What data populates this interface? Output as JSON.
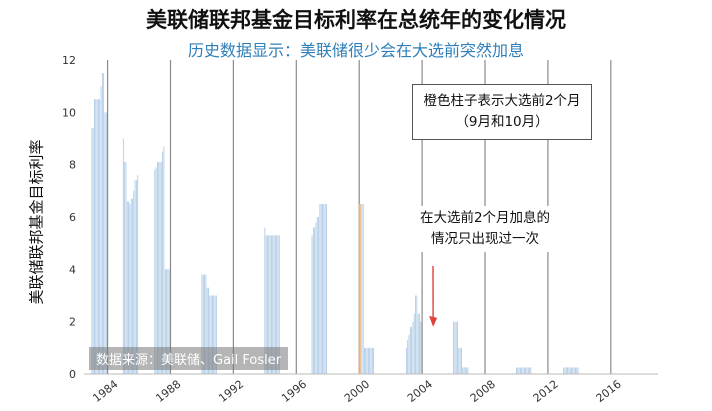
{
  "chart_data": {
    "type": "bar",
    "title": "美联储联邦基金目标利率在总统年的变化情况",
    "subtitle": "历史数据显示：美联储很少会在大选前突然加息",
    "ylabel": "美联储联邦基金目标利率",
    "xlabel": "",
    "ylim": [
      0,
      12
    ],
    "yticks": [
      0,
      2,
      4,
      6,
      8,
      10,
      12
    ],
    "xlim": [
      1982.5,
      2019
    ],
    "xticks": [
      1984,
      1988,
      1992,
      1996,
      2000,
      2004,
      2008,
      2012,
      2016
    ],
    "election_year_lines": [
      1984,
      1988,
      1992,
      1996,
      2000,
      2004,
      2008,
      2012,
      2016
    ],
    "grid": false,
    "colors": {
      "normal": "#a9c7e3",
      "pre_election": "#f0b37e",
      "arrow": "#e0413a"
    },
    "series": [
      {
        "year_start": 1983,
        "values": [
          9.4,
          9.4,
          10.5,
          10.5,
          10.5,
          10.5,
          10.5,
          11.0,
          11.5,
          11.5,
          10.0,
          10.0
        ]
      },
      {
        "year_start": 1985,
        "values": [
          9.0,
          8.1,
          8.1,
          6.6,
          6.6,
          6.5,
          6.7,
          6.7,
          7.0,
          7.4,
          7.4,
          7.6
        ]
      },
      {
        "year_start": 1987,
        "values": [
          7.8,
          7.9,
          8.1,
          8.1,
          8.1,
          8.1,
          8.5,
          8.7,
          4.0,
          4.0,
          4.0,
          4.0
        ]
      },
      {
        "year_start": 1990,
        "values": [
          3.8,
          3.8,
          3.8,
          3.8,
          3.3,
          3.3,
          3.0,
          3.0,
          3.0,
          3.0,
          3.0,
          3.0
        ]
      },
      {
        "year_start": 1994,
        "values": [
          5.6,
          5.3,
          5.3,
          5.3,
          5.3,
          5.3,
          5.3,
          5.3,
          5.3,
          5.3,
          5.3,
          5.3
        ]
      },
      {
        "year_start": 1997,
        "values": [
          5.3,
          5.6,
          5.6,
          5.8,
          6.0,
          6.0,
          6.5,
          6.5,
          6.5,
          6.5,
          6.5,
          6.5
        ]
      },
      {
        "year_start": 2000,
        "values": [
          6.5,
          6.5,
          6.5,
          6.5,
          1.0,
          1.0,
          1.0,
          1.0,
          1.0,
          1.0,
          1.0,
          1.0
        ]
      },
      {
        "year_start": 2003,
        "values": [
          1.0,
          1.3,
          1.5,
          1.8,
          1.8,
          2.0,
          2.3,
          3.0,
          3.0,
          2.3,
          2.3,
          2.0
        ]
      },
      {
        "year_start": 2006,
        "values": [
          2.0,
          2.0,
          2.0,
          2.0,
          1.0,
          1.0,
          1.0,
          0.25,
          0.25,
          0.25,
          0.25,
          0.25
        ]
      },
      {
        "year_start": 2010,
        "values": [
          0.25,
          0.25,
          0.25,
          0.25,
          0.25,
          0.25,
          0.25,
          0.25,
          0.25,
          0.25,
          0.25,
          0.25
        ]
      },
      {
        "year_start": 2013,
        "values": [
          0.25,
          0.25,
          0.25,
          0.25,
          0.25,
          0.25,
          0.25,
          0.25,
          0.25,
          0.25,
          0.25,
          0.25
        ]
      }
    ],
    "pre_election_bars_note": "橙色柱子表示大选前2个月（9月和10月）",
    "annotations": [
      {
        "text": "橙色柱子表示大选前2个月（9月和10月）",
        "boxed": true
      },
      {
        "text": "在大选前2个月加息的情况只出现过一次",
        "arrow_to_year": 2004.7,
        "arrow_to_value": 1.8
      }
    ],
    "source": "数据来源：美联储、Gail Fosler"
  }
}
